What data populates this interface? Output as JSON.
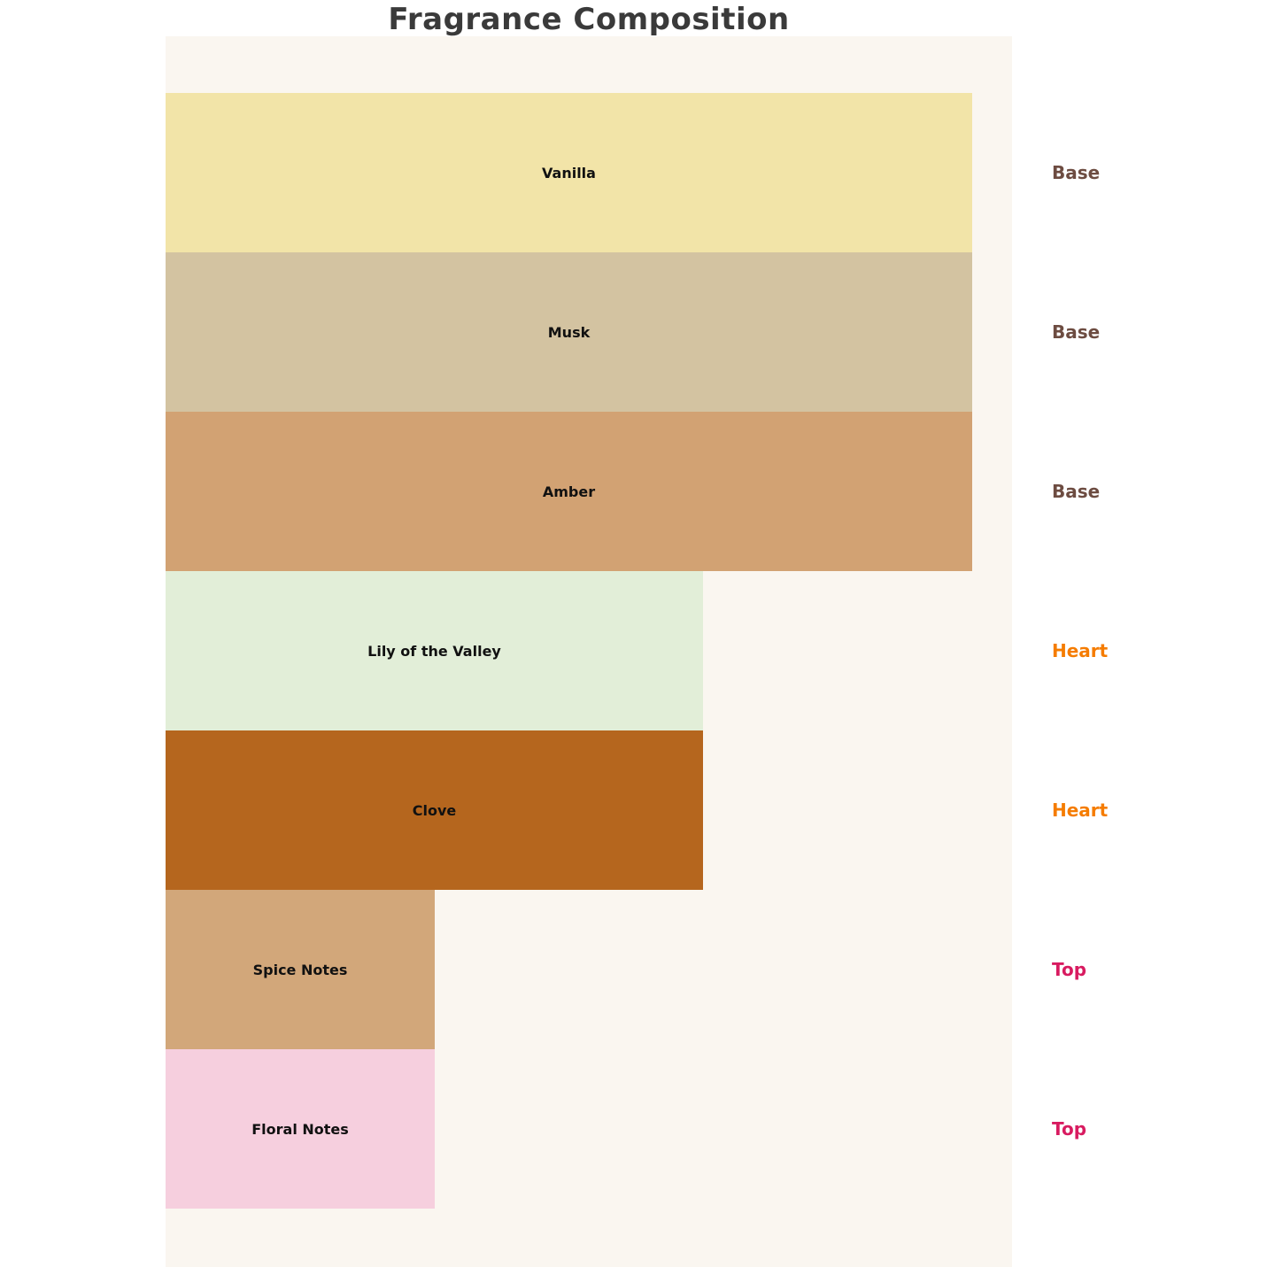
{
  "chart_data": {
    "type": "bar",
    "orientation": "horizontal",
    "title": "Fragrance Composition",
    "xlabel": "",
    "ylabel": "",
    "axes_visible": false,
    "grid": false,
    "legend": "none",
    "value_scale_note": "relative bar lengths: Base = 3, Heart = 2, Top = 1 (ratio 3:2:1 of max width)",
    "xlim": [
      0,
      3
    ],
    "background_color": "#faf6f0",
    "title_color": "#3a3a3a",
    "bar_label_color": "#111111",
    "bars": [
      {
        "label": "Vanilla",
        "group": "Base",
        "value": 3,
        "color": "#f2e4a8"
      },
      {
        "label": "Musk",
        "group": "Base",
        "value": 3,
        "color": "#d3c3a1"
      },
      {
        "label": "Amber",
        "group": "Base",
        "value": 3,
        "color": "#d2a273"
      },
      {
        "label": "Lily of the Valley",
        "group": "Heart",
        "value": 2,
        "color": "#e2eed8"
      },
      {
        "label": "Clove",
        "group": "Heart",
        "value": 2,
        "color": "#b5661e"
      },
      {
        "label": "Spice Notes",
        "group": "Top",
        "value": 1,
        "color": "#d2a77a"
      },
      {
        "label": "Floral Notes",
        "group": "Top",
        "value": 1,
        "color": "#f6cfde"
      }
    ],
    "group_label_colors": {
      "Base": "#6d4c41",
      "Heart": "#f57c00",
      "Top": "#d81b60"
    }
  }
}
